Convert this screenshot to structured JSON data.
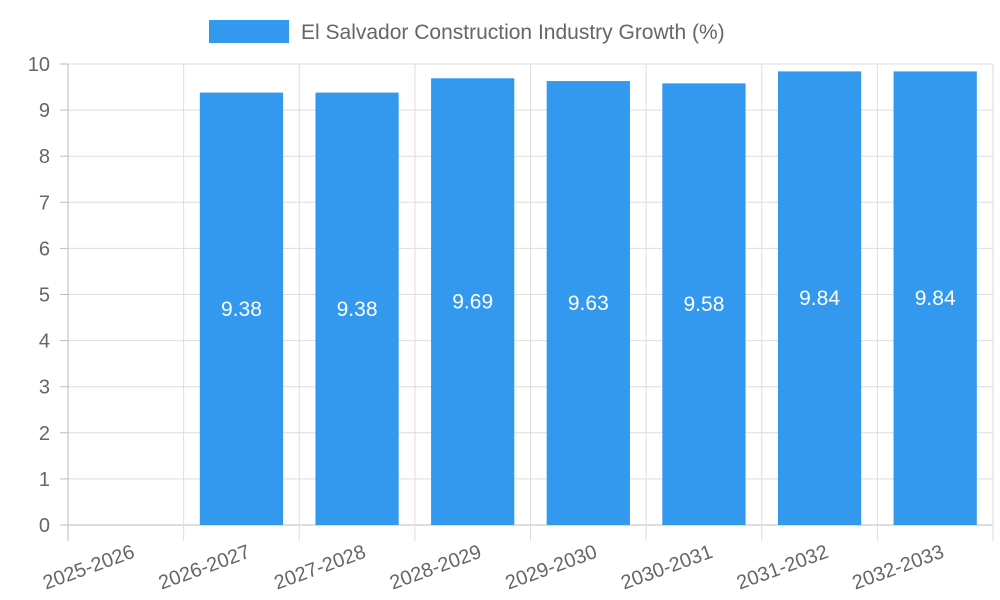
{
  "chart_data": {
    "type": "bar",
    "legend": "El Salvador Construction Industry Growth (%)",
    "legend_position": "top-center",
    "categories": [
      "2025-2026",
      "2026-2027",
      "2027-2028",
      "2028-2029",
      "2029-2030",
      "2030-2031",
      "2031-2032",
      "2032-2033"
    ],
    "values": [
      0,
      9.38,
      9.38,
      9.69,
      9.63,
      9.58,
      9.84,
      9.84
    ],
    "data_labels": [
      "",
      "9.38",
      "9.38",
      "9.69",
      "9.63",
      "9.58",
      "9.84",
      "9.84"
    ],
    "y_ticks": [
      "0",
      "1",
      "2",
      "3",
      "4",
      "5",
      "6",
      "7",
      "8",
      "9",
      "10"
    ],
    "ylim": [
      0,
      10
    ],
    "grid": true,
    "bar_color": "#3399ee"
  }
}
